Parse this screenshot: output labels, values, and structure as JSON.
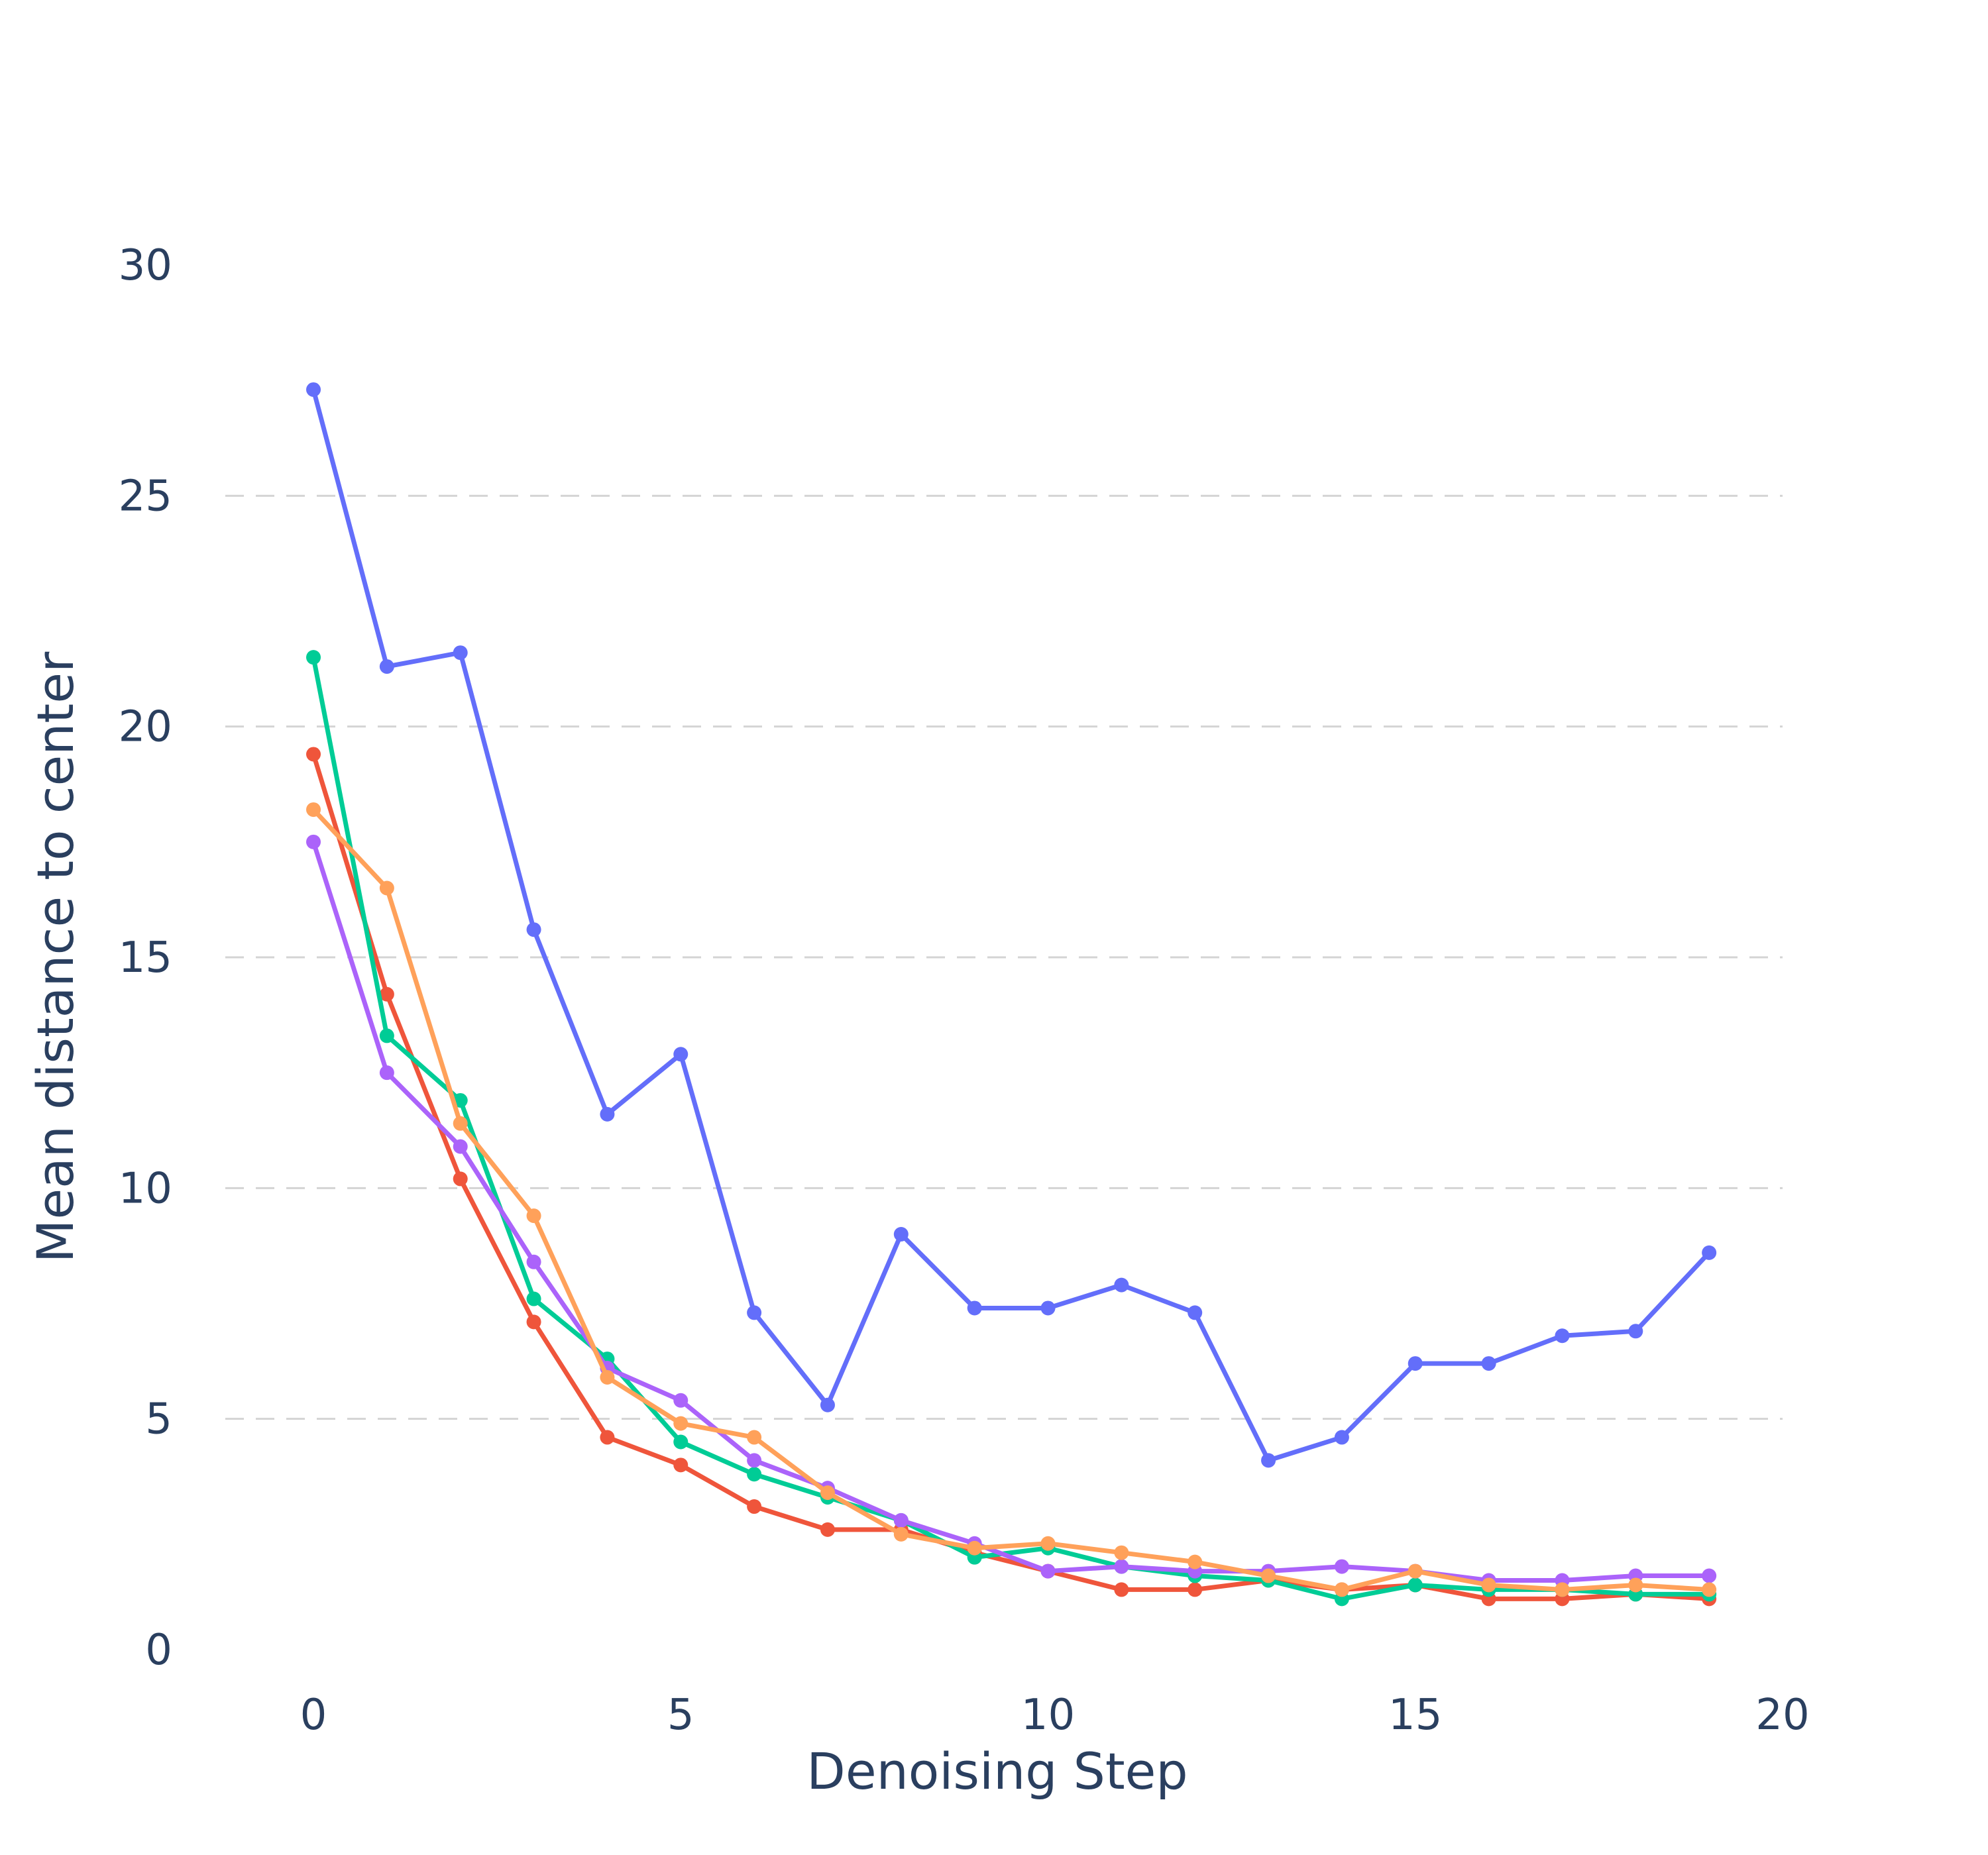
{
  "chart_data": {
    "type": "line",
    "xlabel": "Denoising Step",
    "ylabel": "Mean distance to center",
    "xlim": [
      -1.2,
      20
    ],
    "ylim": [
      0,
      30
    ],
    "xticks": [
      0,
      5,
      10,
      15,
      20
    ],
    "yticks": [
      0,
      5,
      10,
      15,
      20,
      25,
      30
    ],
    "grid": "horizontal dashed",
    "legend": "none",
    "x": [
      0,
      1,
      2,
      3,
      4,
      5,
      6,
      7,
      8,
      9,
      10,
      11,
      12,
      13,
      14,
      15,
      16,
      17,
      18,
      19
    ],
    "series": [
      {
        "color": "#636efa",
        "values": [
          27.3,
          21.3,
          21.6,
          15.6,
          11.6,
          12.9,
          7.3,
          5.3,
          9.0,
          7.4,
          7.4,
          7.9,
          7.3,
          4.1,
          4.6,
          6.2,
          6.2,
          6.8,
          6.9,
          8.6
        ]
      },
      {
        "color": "#ef553b",
        "values": [
          19.4,
          14.2,
          10.2,
          7.1,
          4.6,
          4.0,
          3.1,
          2.6,
          2.6,
          2.1,
          1.7,
          1.3,
          1.3,
          1.5,
          1.3,
          1.4,
          1.1,
          1.1,
          1.2,
          1.1
        ]
      },
      {
        "color": "#00cc96",
        "values": [
          21.5,
          13.3,
          11.9,
          7.6,
          6.3,
          4.5,
          3.8,
          3.3,
          2.8,
          2.0,
          2.2,
          1.8,
          1.6,
          1.5,
          1.1,
          1.4,
          1.3,
          1.3,
          1.2,
          1.2
        ]
      },
      {
        "color": "#ab63fa",
        "values": [
          17.5,
          12.5,
          10.9,
          8.4,
          6.1,
          5.4,
          4.1,
          3.5,
          2.8,
          2.3,
          1.7,
          1.8,
          1.7,
          1.7,
          1.8,
          1.7,
          1.5,
          1.5,
          1.6,
          1.6
        ]
      },
      {
        "color": "#ffa15a",
        "values": [
          18.2,
          16.5,
          11.4,
          9.4,
          5.9,
          4.9,
          4.6,
          3.4,
          2.5,
          2.2,
          2.3,
          2.1,
          1.9,
          1.6,
          1.3,
          1.7,
          1.4,
          1.3,
          1.4,
          1.3
        ]
      }
    ]
  }
}
